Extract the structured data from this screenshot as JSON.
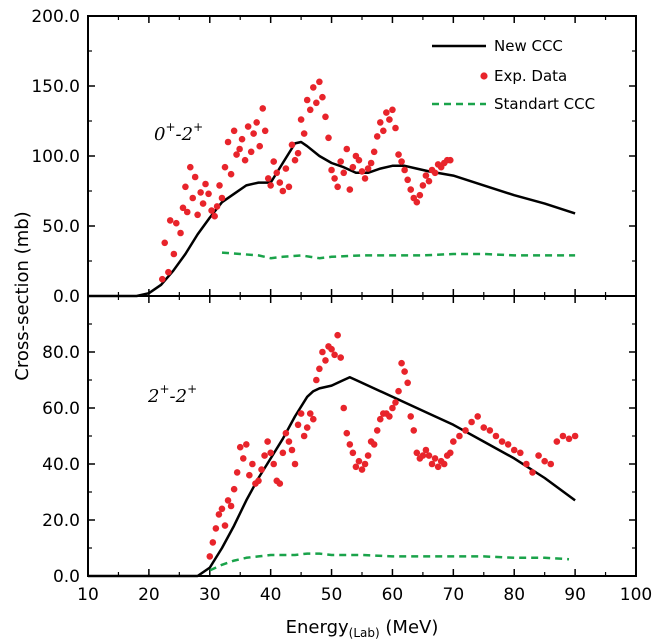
{
  "colors": {
    "new_ccc": "#000000",
    "exp_data": "#e8242b",
    "standart_ccc": "#1aa34a"
  },
  "chart_data": [
    {
      "type": "line",
      "panel_label": {
        "base1": "0",
        "sup1": "+",
        "sep": "-",
        "base2": "2",
        "sup2": "+"
      },
      "ylim": [
        0,
        200
      ],
      "yticks": [
        "0.0",
        "50.0",
        "100.0",
        "150.0",
        "200.0"
      ],
      "ytick_values": [
        0,
        50,
        100,
        150,
        200
      ],
      "legend": {
        "placement": "top-right",
        "entries": [
          "New CCC",
          "Exp. Data",
          "Standart CCC"
        ]
      },
      "series": [
        {
          "name": "New CCC",
          "style": "solid",
          "x": [
            10,
            18,
            20,
            22,
            24,
            26,
            28,
            30,
            32,
            34,
            36,
            38,
            40,
            42,
            44,
            45,
            46,
            48,
            50,
            52,
            54,
            56,
            58,
            60,
            62,
            64,
            66,
            70,
            75,
            80,
            85,
            90
          ],
          "y": [
            0,
            0,
            2,
            8,
            18,
            30,
            44,
            56,
            67,
            73,
            79,
            81,
            81,
            95,
            109,
            110,
            107,
            100,
            95,
            92,
            88,
            88,
            91,
            93,
            93,
            91,
            89,
            86,
            79,
            72,
            66,
            59
          ]
        },
        {
          "name": "Exp. Data",
          "style": "points",
          "x": [
            22.2,
            22.6,
            23.2,
            23.5,
            24.1,
            24.5,
            25.2,
            25.6,
            26.0,
            26.3,
            26.8,
            27.2,
            27.6,
            28.0,
            28.5,
            28.9,
            29.3,
            29.8,
            30.3,
            30.8,
            31.2,
            31.6,
            32.0,
            32.5,
            33.0,
            33.5,
            34.0,
            34.4,
            34.9,
            35.3,
            35.8,
            36.3,
            36.8,
            37.2,
            37.7,
            38.2,
            38.7,
            39.1,
            39.6,
            40.0,
            40.5,
            41.0,
            41.5,
            42.0,
            42.5,
            43.0,
            43.5,
            44.0,
            44.5,
            45.0,
            45.5,
            46.0,
            46.5,
            47.0,
            47.5,
            48.0,
            48.5,
            49.0,
            49.5,
            50.0,
            50.5,
            51.0,
            51.5,
            52.0,
            52.5,
            53.0,
            53.5,
            54.0,
            54.5,
            55.0,
            55.5,
            56.0,
            56.5,
            57.0,
            57.5,
            58.0,
            58.5,
            59.0,
            59.5,
            60.0,
            60.5,
            61.0,
            61.5,
            62.0,
            62.5,
            63.0,
            63.5,
            64.0,
            64.5,
            65.0,
            65.5,
            66.0,
            66.5,
            67.0,
            67.5,
            68.0,
            68.5,
            69.0,
            69.5
          ],
          "y": [
            12,
            38,
            17,
            54,
            30,
            52,
            45,
            63,
            78,
            60,
            92,
            70,
            85,
            58,
            74,
            66,
            80,
            73,
            61,
            57,
            64,
            79,
            70,
            92,
            110,
            87,
            118,
            101,
            105,
            112,
            97,
            121,
            103,
            116,
            124,
            107,
            134,
            118,
            84,
            79,
            96,
            88,
            81,
            75,
            91,
            78,
            108,
            97,
            102,
            126,
            116,
            140,
            133,
            149,
            138,
            153,
            142,
            128,
            113,
            90,
            84,
            78,
            96,
            88,
            105,
            76,
            92,
            100,
            97,
            89,
            84,
            91,
            95,
            103,
            114,
            124,
            118,
            131,
            126,
            133,
            120,
            101,
            96,
            90,
            83,
            76,
            70,
            67,
            72,
            79,
            86,
            82,
            90,
            88,
            94,
            92,
            95,
            97,
            97
          ]
        },
        {
          "name": "Standart CCC",
          "style": "dashed",
          "x": [
            32,
            35,
            38,
            40,
            42,
            45,
            48,
            50,
            55,
            60,
            65,
            70,
            75,
            80,
            85,
            90
          ],
          "y": [
            31,
            30,
            29,
            27,
            28,
            29,
            27,
            28,
            29,
            29,
            29,
            30,
            30,
            29,
            29,
            29
          ]
        }
      ]
    },
    {
      "type": "line",
      "panel_label": {
        "base1": "2",
        "sup1": "+",
        "sep": "-",
        "base2": "2",
        "sup2": "+"
      },
      "ylim": [
        0,
        100
      ],
      "yticks": [
        "0.0",
        "20.0",
        "40.0",
        "60.0",
        "80.0"
      ],
      "ytick_values": [
        0,
        20,
        40,
        60,
        80
      ],
      "series": [
        {
          "name": "New CCC",
          "style": "solid",
          "x": [
            10,
            28,
            30,
            32,
            34,
            36,
            38,
            40,
            42,
            44,
            46,
            47,
            48,
            50,
            52,
            53,
            54,
            56,
            58,
            60,
            62,
            64,
            66,
            70,
            75,
            80,
            85,
            90
          ],
          "y": [
            0,
            0,
            3,
            10,
            18,
            27,
            35,
            42,
            49,
            57,
            64,
            66,
            67,
            68,
            70,
            71,
            70,
            68,
            66,
            64,
            62,
            60,
            58,
            54,
            48,
            42,
            35,
            27
          ]
        },
        {
          "name": "Exp. Data",
          "style": "points",
          "x": [
            30.0,
            30.5,
            31.0,
            31.5,
            32.0,
            32.5,
            33.0,
            33.5,
            34.0,
            34.5,
            35.0,
            35.5,
            36.0,
            36.5,
            37.0,
            37.5,
            38.0,
            38.5,
            39.0,
            39.5,
            40.0,
            40.5,
            41.0,
            41.5,
            42.0,
            42.5,
            43.0,
            43.5,
            44.0,
            44.5,
            45.0,
            45.5,
            46.0,
            46.5,
            47.0,
            47.5,
            48.0,
            48.5,
            49.0,
            49.5,
            50.0,
            50.5,
            51.0,
            51.5,
            52.0,
            52.5,
            53.0,
            53.5,
            54.0,
            54.5,
            55.0,
            55.5,
            56.0,
            56.5,
            57.0,
            57.5,
            58.0,
            58.5,
            59.0,
            59.5,
            60.0,
            60.5,
            61.0,
            61.5,
            62.0,
            62.5,
            63.0,
            63.5,
            64.0,
            64.5,
            65.0,
            65.5,
            66.0,
            66.5,
            67.0,
            67.5,
            68.0,
            68.5,
            69.0,
            69.5,
            70.0,
            71.0,
            72.0,
            73.0,
            74.0,
            75.0,
            76.0,
            77.0,
            78.0,
            79.0,
            80.0,
            81.0,
            82.0,
            83.0,
            84.0,
            85.0,
            86.0,
            87.0,
            88.0,
            89.0,
            90.0
          ],
          "y": [
            7,
            12,
            17,
            22,
            24,
            18,
            27,
            25,
            31,
            37,
            46,
            42,
            47,
            36,
            40,
            33,
            34,
            38,
            43,
            48,
            44,
            40,
            34,
            33,
            44,
            51,
            48,
            45,
            40,
            54,
            58,
            50,
            53,
            58,
            56,
            70,
            74,
            80,
            77,
            82,
            81,
            79,
            86,
            78,
            60,
            51,
            47,
            44,
            39,
            41,
            38,
            40,
            43,
            48,
            47,
            52,
            56,
            58,
            58,
            57,
            60,
            62,
            66,
            76,
            73,
            69,
            57,
            52,
            44,
            42,
            43,
            45,
            43,
            40,
            42,
            39,
            41,
            40,
            43,
            44,
            48,
            50,
            52,
            55,
            57,
            53,
            52,
            50,
            48,
            47,
            45,
            44,
            40,
            37,
            43,
            41,
            40,
            48,
            50,
            49,
            50
          ]
        },
        {
          "name": "Standart CCC",
          "style": "dashed",
          "x": [
            30,
            32,
            34,
            36,
            38,
            40,
            42,
            44,
            46,
            48,
            50,
            52,
            55,
            60,
            65,
            70,
            75,
            80,
            85,
            89
          ],
          "y": [
            2,
            4,
            5.5,
            6.5,
            7,
            7.5,
            7.5,
            7.5,
            8,
            8,
            7.5,
            7.5,
            7.5,
            7,
            7,
            7,
            7,
            6.5,
            6.5,
            6
          ]
        }
      ]
    }
  ],
  "xaxis": {
    "xlim": [
      10,
      100
    ],
    "ticks": [
      "10",
      "20",
      "30",
      "40",
      "50",
      "60",
      "70",
      "80",
      "90",
      "100"
    ],
    "tick_values": [
      10,
      20,
      30,
      40,
      50,
      60,
      70,
      80,
      90,
      100
    ],
    "title_main": "Energy",
    "title_sub": "(Lab)",
    "title_unit": " (MeV)"
  },
  "ylabel": "Cross-section (mb)"
}
